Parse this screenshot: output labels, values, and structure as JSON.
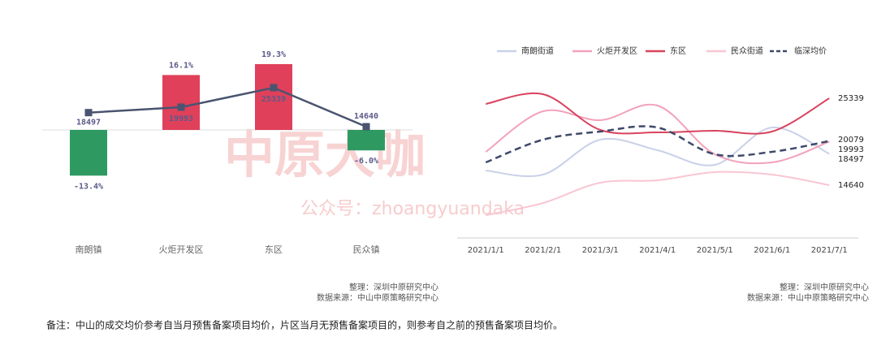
{
  "chart_data": [
    {
      "type": "bar_line",
      "categories": [
        "南朗镇",
        "火炬开发区",
        "东区",
        "民众镇"
      ],
      "values": [
        -13.4,
        16.1,
        19.3,
        -6.0
      ],
      "value_labels": [
        "-13.4%",
        "16.1%",
        "19.3%",
        "-6.0%"
      ],
      "positive_color": "#e0405a",
      "negative_color": "#2e9a62",
      "line": {
        "values": [
          18497,
          19993,
          25339,
          14640
        ],
        "color": "#4a5470"
      },
      "notes": [
        "整理：深圳中原研究中心",
        "数据来源：中山中原策略研究中心"
      ]
    },
    {
      "type": "line",
      "x": [
        "2021/1/1",
        "2021/2/1",
        "2021/3/1",
        "2021/4/1",
        "2021/5/1",
        "2021/6/1",
        "2021/7/1"
      ],
      "series": [
        {
          "name": "南朗街道",
          "color": "#c9d1e8",
          "values": [
            16440,
            15940,
            20240,
            18940,
            17140,
            21740,
            18497
          ]
        },
        {
          "name": "火炬开发区",
          "color": "#f2a2ba",
          "values": [
            18740,
            23740,
            22640,
            24440,
            18440,
            17440,
            19993
          ]
        },
        {
          "name": "东区",
          "color": "#d9435e",
          "values": [
            24640,
            25840,
            21440,
            21140,
            21340,
            21240,
            25339
          ]
        },
        {
          "name": "民众街道",
          "color": "#f8c6d3",
          "values": [
            10940,
            12440,
            14940,
            15240,
            16240,
            15940,
            14640
          ]
        },
        {
          "name": "临深均价",
          "color": "#3f4a6b",
          "dashed": true,
          "values": [
            17440,
            20240,
            21240,
            21740,
            18440,
            18740,
            20079
          ]
        }
      ],
      "notes": [
        "整理：深圳中原研究中心",
        "数据来源：中山中原策略研究中心"
      ]
    }
  ],
  "watermark": {
    "title": "中原大咖",
    "subtitle": "公众号：zhoangyuandaka"
  },
  "footnote": "备注：中山的成交均价参考自当月预售备案项目均价，片区当月无预售备案项目的，则参考自之前的预售备案项目均价。"
}
